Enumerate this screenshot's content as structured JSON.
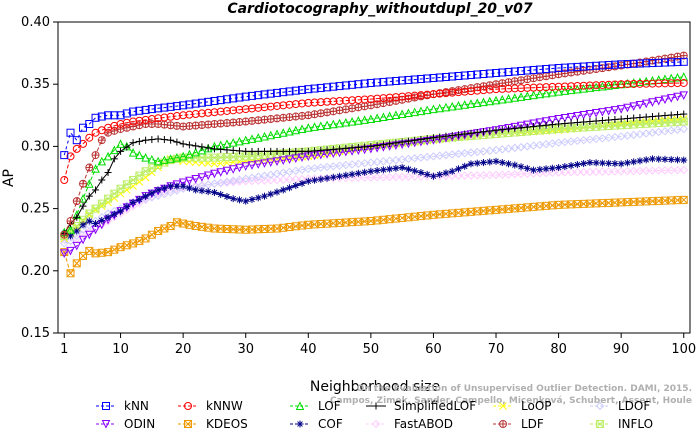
{
  "chart_data": {
    "type": "line",
    "title": "Cardiotocography_withoutdupl_20_v07",
    "xlabel": "Neighborhood size",
    "ylabel": "AP",
    "xlim": [
      0,
      101
    ],
    "ylim": [
      0.15,
      0.4
    ],
    "xticks": [
      1,
      10,
      20,
      30,
      40,
      50,
      60,
      70,
      80,
      90,
      100
    ],
    "yticks": [
      0.15,
      0.2,
      0.25,
      0.3,
      0.35,
      0.4
    ],
    "ytick_labels": [
      "0.15",
      "0.20",
      "0.25",
      "0.30",
      "0.35",
      "0.40"
    ],
    "grid": false,
    "legend_position": "bottom",
    "watermark": "Campos, Zimek, Sander, Campello, Micenková, Schubert, Assent, Houle: On the Evaluation of Unsupervised Outlier Detection. DAMI, 2015.",
    "series": [
      {
        "name": "kNN",
        "color": "#0000ff",
        "marker": "square",
        "dash": "3,3",
        "points": [
          [
            1,
            0.293
          ],
          [
            2,
            0.311
          ],
          [
            3,
            0.305
          ],
          [
            4,
            0.315
          ],
          [
            5,
            0.318
          ],
          [
            6,
            0.323
          ],
          [
            8,
            0.325
          ],
          [
            10,
            0.325
          ],
          [
            12,
            0.328
          ],
          [
            15,
            0.33
          ],
          [
            20,
            0.333
          ],
          [
            30,
            0.34
          ],
          [
            40,
            0.346
          ],
          [
            50,
            0.351
          ],
          [
            60,
            0.355
          ],
          [
            70,
            0.359
          ],
          [
            80,
            0.363
          ],
          [
            90,
            0.366
          ],
          [
            100,
            0.368
          ]
        ]
      },
      {
        "name": "kNNW",
        "color": "#ff0000",
        "marker": "circle",
        "dash": "4,2",
        "points": [
          [
            1,
            0.273
          ],
          [
            2,
            0.292
          ],
          [
            3,
            0.298
          ],
          [
            4,
            0.302
          ],
          [
            5,
            0.307
          ],
          [
            6,
            0.311
          ],
          [
            8,
            0.315
          ],
          [
            10,
            0.318
          ],
          [
            12,
            0.32
          ],
          [
            15,
            0.322
          ],
          [
            20,
            0.325
          ],
          [
            30,
            0.33
          ],
          [
            40,
            0.335
          ],
          [
            50,
            0.338
          ],
          [
            60,
            0.342
          ],
          [
            70,
            0.346
          ],
          [
            80,
            0.348
          ],
          [
            90,
            0.35
          ],
          [
            100,
            0.351
          ]
        ]
      },
      {
        "name": "LOF",
        "color": "#00dd00",
        "marker": "triangle-up",
        "dash": "4,2",
        "points": [
          [
            1,
            0.231
          ],
          [
            2,
            0.233
          ],
          [
            3,
            0.245
          ],
          [
            4,
            0.258
          ],
          [
            5,
            0.27
          ],
          [
            6,
            0.282
          ],
          [
            7,
            0.288
          ],
          [
            8,
            0.292
          ],
          [
            9,
            0.297
          ],
          [
            10,
            0.302
          ],
          [
            11,
            0.3
          ],
          [
            12,
            0.295
          ],
          [
            14,
            0.291
          ],
          [
            16,
            0.288
          ],
          [
            18,
            0.29
          ],
          [
            20,
            0.292
          ],
          [
            25,
            0.3
          ],
          [
            30,
            0.305
          ],
          [
            40,
            0.315
          ],
          [
            50,
            0.322
          ],
          [
            60,
            0.33
          ],
          [
            70,
            0.337
          ],
          [
            80,
            0.344
          ],
          [
            90,
            0.35
          ],
          [
            100,
            0.356
          ]
        ]
      },
      {
        "name": "SimplifiedLOF",
        "color": "#000000",
        "marker": "plus",
        "dash": "",
        "points": [
          [
            1,
            0.23
          ],
          [
            2,
            0.238
          ],
          [
            3,
            0.243
          ],
          [
            4,
            0.252
          ],
          [
            5,
            0.26
          ],
          [
            6,
            0.265
          ],
          [
            7,
            0.273
          ],
          [
            8,
            0.279
          ],
          [
            9,
            0.29
          ],
          [
            10,
            0.296
          ],
          [
            12,
            0.303
          ],
          [
            14,
            0.305
          ],
          [
            16,
            0.306
          ],
          [
            18,
            0.305
          ],
          [
            20,
            0.302
          ],
          [
            25,
            0.298
          ],
          [
            30,
            0.296
          ],
          [
            40,
            0.296
          ],
          [
            50,
            0.3
          ],
          [
            60,
            0.307
          ],
          [
            70,
            0.313
          ],
          [
            80,
            0.318
          ],
          [
            90,
            0.322
          ],
          [
            100,
            0.326
          ]
        ]
      },
      {
        "name": "LoOP",
        "color": "#ffff00",
        "marker": "x",
        "dash": "4,2",
        "points": [
          [
            1,
            0.226
          ],
          [
            2,
            0.23
          ],
          [
            3,
            0.235
          ],
          [
            4,
            0.24
          ],
          [
            5,
            0.245
          ],
          [
            6,
            0.249
          ],
          [
            8,
            0.255
          ],
          [
            10,
            0.262
          ],
          [
            12,
            0.268
          ],
          [
            14,
            0.275
          ],
          [
            16,
            0.283
          ],
          [
            18,
            0.29
          ],
          [
            20,
            0.288
          ],
          [
            25,
            0.286
          ],
          [
            30,
            0.288
          ],
          [
            40,
            0.292
          ],
          [
            50,
            0.3
          ],
          [
            60,
            0.305
          ],
          [
            70,
            0.31
          ],
          [
            80,
            0.313
          ],
          [
            90,
            0.318
          ],
          [
            100,
            0.322
          ]
        ]
      },
      {
        "name": "LDOF",
        "color": "#ccccff",
        "marker": "diamond",
        "dash": "4,2",
        "points": [
          [
            1,
            0.222
          ],
          [
            2,
            0.224
          ],
          [
            3,
            0.228
          ],
          [
            4,
            0.233
          ],
          [
            6,
            0.24
          ],
          [
            8,
            0.246
          ],
          [
            10,
            0.25
          ],
          [
            12,
            0.255
          ],
          [
            15,
            0.259
          ],
          [
            18,
            0.263
          ],
          [
            20,
            0.266
          ],
          [
            25,
            0.27
          ],
          [
            30,
            0.274
          ],
          [
            40,
            0.282
          ],
          [
            50,
            0.287
          ],
          [
            60,
            0.292
          ],
          [
            70,
            0.297
          ],
          [
            80,
            0.303
          ],
          [
            90,
            0.308
          ],
          [
            100,
            0.314
          ]
        ]
      },
      {
        "name": "ODIN",
        "color": "#8800ff",
        "marker": "triangle-down",
        "dash": "4,2",
        "points": [
          [
            1,
            0.214
          ],
          [
            2,
            0.216
          ],
          [
            3,
            0.22
          ],
          [
            4,
            0.225
          ],
          [
            6,
            0.233
          ],
          [
            8,
            0.241
          ],
          [
            10,
            0.248
          ],
          [
            12,
            0.254
          ],
          [
            14,
            0.26
          ],
          [
            16,
            0.264
          ],
          [
            18,
            0.268
          ],
          [
            20,
            0.271
          ],
          [
            25,
            0.278
          ],
          [
            30,
            0.284
          ],
          [
            40,
            0.292
          ],
          [
            50,
            0.298
          ],
          [
            60,
            0.305
          ],
          [
            70,
            0.313
          ],
          [
            80,
            0.322
          ],
          [
            90,
            0.33
          ],
          [
            100,
            0.341
          ]
        ]
      },
      {
        "name": "KDEOS",
        "color": "#ee9900",
        "marker": "square-x",
        "dash": "4,2",
        "points": [
          [
            1,
            0.215
          ],
          [
            2,
            0.198
          ],
          [
            3,
            0.206
          ],
          [
            4,
            0.212
          ],
          [
            5,
            0.216
          ],
          [
            6,
            0.214
          ],
          [
            8,
            0.215
          ],
          [
            10,
            0.219
          ],
          [
            12,
            0.222
          ],
          [
            14,
            0.226
          ],
          [
            16,
            0.232
          ],
          [
            18,
            0.236
          ],
          [
            19,
            0.239
          ],
          [
            20,
            0.238
          ],
          [
            22,
            0.236
          ],
          [
            25,
            0.234
          ],
          [
            30,
            0.233
          ],
          [
            35,
            0.234
          ],
          [
            40,
            0.237
          ],
          [
            50,
            0.24
          ],
          [
            60,
            0.245
          ],
          [
            70,
            0.249
          ],
          [
            80,
            0.253
          ],
          [
            90,
            0.255
          ],
          [
            100,
            0.257
          ]
        ]
      },
      {
        "name": "COF",
        "color": "#000088",
        "marker": "star",
        "dash": "4,2",
        "points": [
          [
            1,
            0.23
          ],
          [
            2,
            0.228
          ],
          [
            3,
            0.232
          ],
          [
            4,
            0.237
          ],
          [
            5,
            0.24
          ],
          [
            6,
            0.238
          ],
          [
            8,
            0.243
          ],
          [
            10,
            0.248
          ],
          [
            12,
            0.255
          ],
          [
            14,
            0.26
          ],
          [
            16,
            0.265
          ],
          [
            18,
            0.268
          ],
          [
            20,
            0.268
          ],
          [
            22,
            0.265
          ],
          [
            25,
            0.263
          ],
          [
            28,
            0.258
          ],
          [
            30,
            0.256
          ],
          [
            33,
            0.26
          ],
          [
            36,
            0.265
          ],
          [
            40,
            0.272
          ],
          [
            45,
            0.276
          ],
          [
            50,
            0.28
          ],
          [
            55,
            0.283
          ],
          [
            58,
            0.279
          ],
          [
            60,
            0.276
          ],
          [
            63,
            0.28
          ],
          [
            66,
            0.286
          ],
          [
            70,
            0.288
          ],
          [
            73,
            0.285
          ],
          [
            76,
            0.281
          ],
          [
            80,
            0.283
          ],
          [
            85,
            0.287
          ],
          [
            90,
            0.286
          ],
          [
            95,
            0.29
          ],
          [
            100,
            0.289
          ]
        ]
      },
      {
        "name": "FastABOD",
        "color": "#ffccff",
        "marker": "diamond",
        "dash": "4,2",
        "points": [
          [
            1,
            0.225
          ],
          [
            2,
            0.224
          ],
          [
            3,
            0.226
          ],
          [
            4,
            0.229
          ],
          [
            6,
            0.234
          ],
          [
            8,
            0.24
          ],
          [
            10,
            0.246
          ],
          [
            12,
            0.252
          ],
          [
            14,
            0.257
          ],
          [
            16,
            0.262
          ],
          [
            18,
            0.265
          ],
          [
            20,
            0.267
          ],
          [
            25,
            0.27
          ],
          [
            30,
            0.272
          ],
          [
            40,
            0.274
          ],
          [
            50,
            0.275
          ],
          [
            60,
            0.276
          ],
          [
            70,
            0.277
          ],
          [
            80,
            0.279
          ],
          [
            90,
            0.28
          ],
          [
            100,
            0.281
          ]
        ]
      },
      {
        "name": "LDF",
        "color": "#bb3333",
        "marker": "circle-plus",
        "dash": "4,2",
        "points": [
          [
            1,
            0.229
          ],
          [
            2,
            0.24
          ],
          [
            3,
            0.256
          ],
          [
            4,
            0.27
          ],
          [
            5,
            0.283
          ],
          [
            6,
            0.293
          ],
          [
            7,
            0.305
          ],
          [
            8,
            0.311
          ],
          [
            10,
            0.314
          ],
          [
            12,
            0.316
          ],
          [
            14,
            0.318
          ],
          [
            16,
            0.318
          ],
          [
            18,
            0.317
          ],
          [
            20,
            0.316
          ],
          [
            25,
            0.318
          ],
          [
            30,
            0.32
          ],
          [
            40,
            0.325
          ],
          [
            50,
            0.333
          ],
          [
            60,
            0.342
          ],
          [
            70,
            0.35
          ],
          [
            80,
            0.358
          ],
          [
            90,
            0.365
          ],
          [
            100,
            0.373
          ]
        ]
      },
      {
        "name": "INFLO",
        "color": "#bbee66",
        "marker": "square-star",
        "dash": "4,2",
        "points": [
          [
            1,
            0.228
          ],
          [
            2,
            0.232
          ],
          [
            3,
            0.236
          ],
          [
            4,
            0.241
          ],
          [
            5,
            0.246
          ],
          [
            6,
            0.25
          ],
          [
            8,
            0.258
          ],
          [
            10,
            0.266
          ],
          [
            12,
            0.273
          ],
          [
            14,
            0.28
          ],
          [
            16,
            0.285
          ],
          [
            18,
            0.289
          ],
          [
            20,
            0.291
          ],
          [
            25,
            0.291
          ],
          [
            30,
            0.292
          ],
          [
            40,
            0.296
          ],
          [
            50,
            0.301
          ],
          [
            60,
            0.306
          ],
          [
            70,
            0.31
          ],
          [
            80,
            0.314
          ],
          [
            90,
            0.317
          ],
          [
            100,
            0.32
          ]
        ]
      }
    ]
  }
}
